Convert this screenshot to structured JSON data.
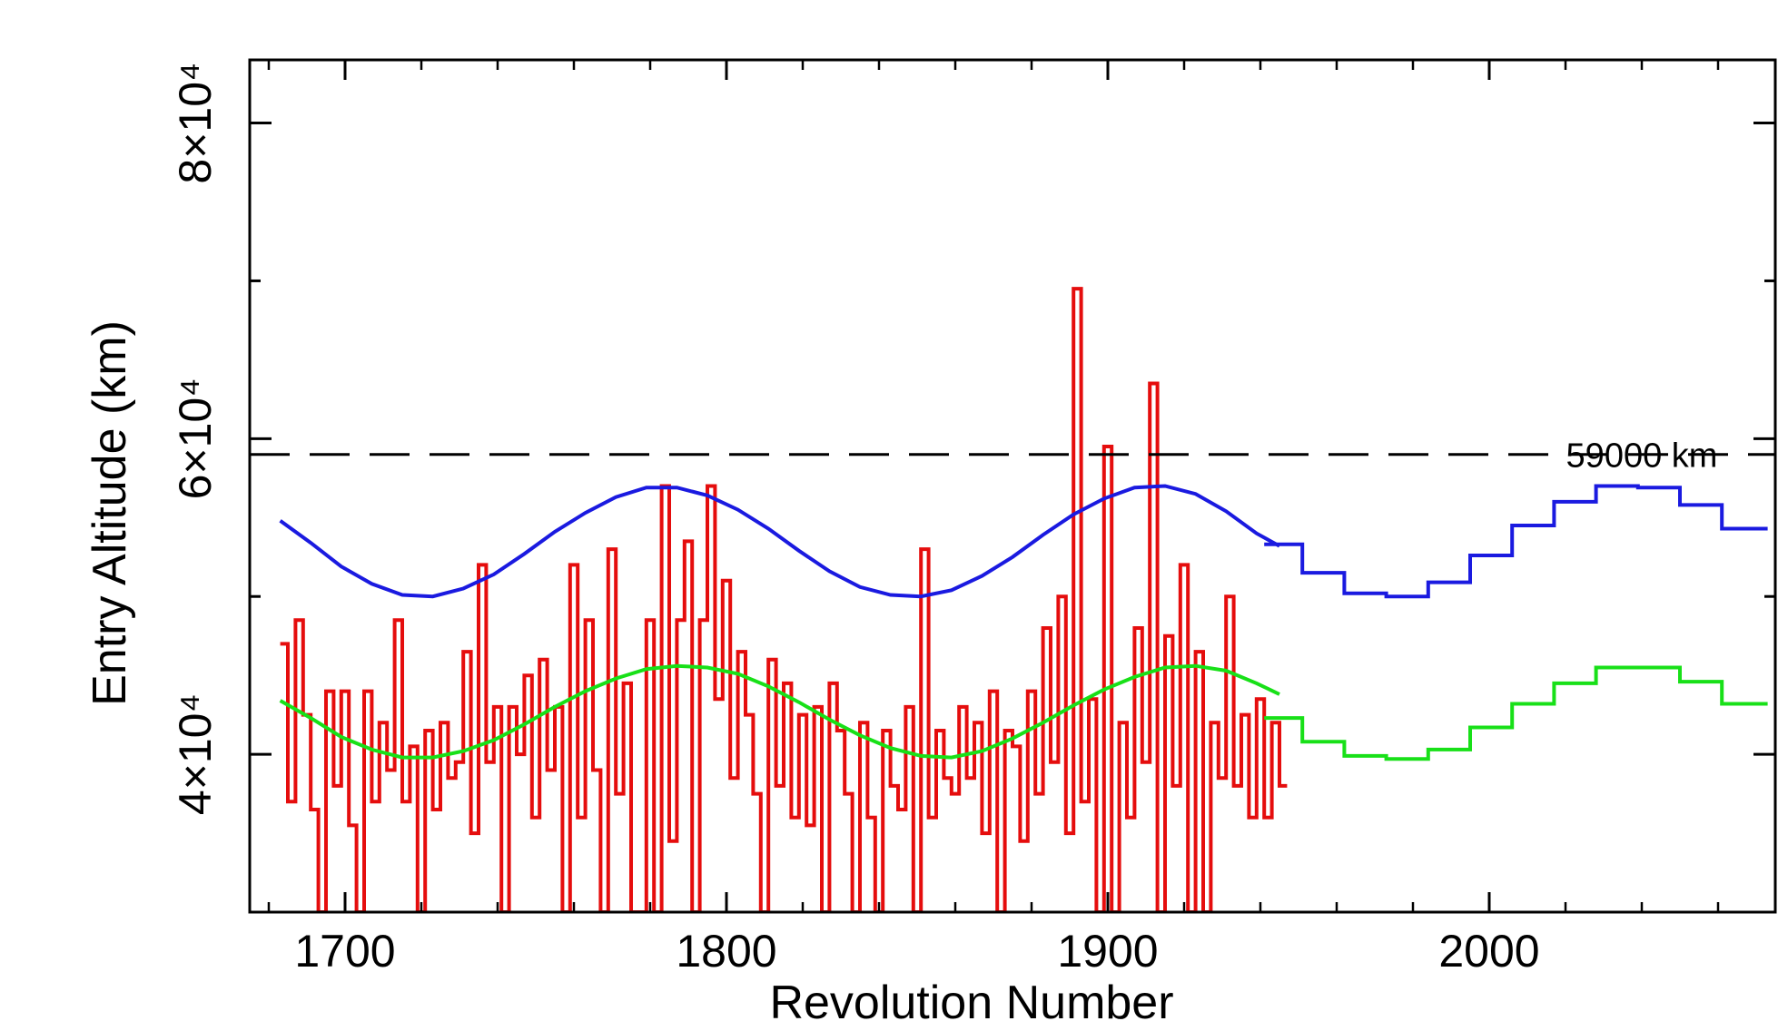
{
  "chart_data": {
    "type": "line",
    "xlabel": "Revolution Number",
    "ylabel": "Entry Altitude (km)",
    "xlim": [
      1675,
      2075
    ],
    "ylim": [
      30000,
      84000
    ],
    "grid": false,
    "x_ticks": [
      {
        "value": 1700,
        "label": "1700"
      },
      {
        "value": 1800,
        "label": "1800"
      },
      {
        "value": 1900,
        "label": "1900"
      },
      {
        "value": 2000,
        "label": "2000"
      }
    ],
    "y_ticks": [
      {
        "value": 40000,
        "label": "4×10⁴"
      },
      {
        "value": 60000,
        "label": "6×10⁴"
      },
      {
        "value": 80000,
        "label": "8×10⁴"
      }
    ],
    "annotations": [
      {
        "text": "59000 km",
        "x": 2040,
        "y": 59000
      }
    ],
    "reference_lines": [
      {
        "y": 59000,
        "style": "dashed",
        "color": "#000000",
        "x": [
          1675,
          2075
        ]
      }
    ],
    "series": [
      {
        "color": "#e50d0d",
        "style": "step",
        "x": [
          1683,
          1685,
          1687,
          1689,
          1691,
          1693,
          1695,
          1697,
          1699,
          1701,
          1703,
          1705,
          1707,
          1709,
          1711,
          1713,
          1715,
          1717,
          1719,
          1721,
          1723,
          1725,
          1727,
          1729,
          1731,
          1733,
          1735,
          1737,
          1739,
          1741,
          1743,
          1745,
          1747,
          1749,
          1751,
          1753,
          1755,
          1757,
          1759,
          1761,
          1763,
          1765,
          1767,
          1769,
          1771,
          1773,
          1775,
          1777,
          1779,
          1781,
          1783,
          1785,
          1787,
          1789,
          1791,
          1793,
          1795,
          1797,
          1799,
          1801,
          1803,
          1805,
          1807,
          1809,
          1811,
          1813,
          1815,
          1817,
          1819,
          1821,
          1823,
          1825,
          1827,
          1829,
          1831,
          1833,
          1835,
          1837,
          1839,
          1841,
          1843,
          1845,
          1847,
          1849,
          1851,
          1853,
          1855,
          1857,
          1859,
          1861,
          1863,
          1865,
          1867,
          1869,
          1871,
          1873,
          1875,
          1877,
          1879,
          1881,
          1883,
          1885,
          1887,
          1889,
          1891,
          1893,
          1895,
          1897,
          1899,
          1901,
          1903,
          1905,
          1907,
          1909,
          1911,
          1913,
          1915,
          1917,
          1919,
          1921,
          1923,
          1925,
          1927,
          1929,
          1931,
          1933,
          1935,
          1937,
          1939,
          1941,
          1943,
          1945
        ],
        "y": [
          47000,
          37000,
          48500,
          42500,
          36500,
          30000,
          44000,
          38000,
          44000,
          35500,
          30000,
          44000,
          37000,
          42000,
          39000,
          48500,
          37000,
          40500,
          30000,
          41500,
          36500,
          42000,
          38500,
          39500,
          46500,
          35000,
          52000,
          39500,
          43000,
          30000,
          43000,
          40000,
          45000,
          36000,
          46000,
          39000,
          43000,
          30000,
          52000,
          36000,
          48500,
          39000,
          30000,
          53000,
          37500,
          44500,
          30000,
          30000,
          48500,
          30000,
          57000,
          34500,
          48500,
          53500,
          30000,
          48500,
          57000,
          43500,
          51000,
          38500,
          46500,
          42500,
          37500,
          30000,
          46000,
          38000,
          44500,
          36000,
          42500,
          35500,
          43000,
          30000,
          44500,
          41500,
          37500,
          30000,
          42000,
          36000,
          30000,
          41500,
          38000,
          36500,
          43000,
          30000,
          53000,
          36000,
          41500,
          38500,
          37500,
          43000,
          38500,
          42000,
          35000,
          44000,
          30000,
          41500,
          40500,
          34500,
          44000,
          37500,
          48000,
          39500,
          50000,
          35000,
          69500,
          37000,
          43500,
          30000,
          59500,
          30000,
          42000,
          36000,
          48000,
          39500,
          63500,
          30000,
          47500,
          38000,
          52000,
          30000,
          46500,
          30000,
          42000,
          38500,
          50000,
          38000,
          42500,
          36000,
          43500,
          36000,
          42000,
          38000
        ],
        "end": 1947
      },
      {
        "color": "#1a1ae0",
        "style": "line",
        "x": [
          1683,
          1691,
          1699,
          1707,
          1715,
          1723,
          1731,
          1739,
          1747,
          1755,
          1763,
          1771,
          1779,
          1787,
          1795,
          1803,
          1811,
          1819,
          1827,
          1835,
          1843,
          1851,
          1859,
          1867,
          1875,
          1883,
          1891,
          1899,
          1907,
          1915,
          1923,
          1931,
          1939,
          1945
        ],
        "y": [
          54800,
          53400,
          51900,
          50800,
          50100,
          50000,
          50500,
          51400,
          52700,
          54100,
          55300,
          56300,
          56900,
          56900,
          56400,
          55500,
          54300,
          52900,
          51600,
          50600,
          50100,
          50000,
          50400,
          51300,
          52500,
          53900,
          55200,
          56200,
          56900,
          57000,
          56500,
          55400,
          54000,
          53200
        ]
      },
      {
        "color": "#1a1ae0",
        "style": "step",
        "x": [
          1941,
          1951,
          1962,
          1973,
          1984,
          1995,
          2006,
          2017,
          2028,
          2039,
          2050,
          2061
        ],
        "y": [
          53300,
          51500,
          50200,
          50000,
          50900,
          52600,
          54500,
          56000,
          57000,
          56900,
          55800,
          54300
        ],
        "end": 2073
      },
      {
        "color": "#18e018",
        "style": "line",
        "x": [
          1683,
          1691,
          1699,
          1707,
          1715,
          1723,
          1731,
          1739,
          1747,
          1755,
          1763,
          1771,
          1779,
          1787,
          1795,
          1803,
          1811,
          1819,
          1827,
          1835,
          1843,
          1851,
          1859,
          1867,
          1875,
          1883,
          1891,
          1899,
          1907,
          1915,
          1923,
          1931,
          1939,
          1945
        ],
        "y": [
          43400,
          42300,
          41100,
          40300,
          39800,
          39800,
          40200,
          40900,
          41900,
          43000,
          44000,
          44800,
          45400,
          45600,
          45500,
          45100,
          44300,
          43300,
          42200,
          41200,
          40400,
          39900,
          39800,
          40200,
          41000,
          42000,
          43100,
          44100,
          44900,
          45500,
          45600,
          45300,
          44500,
          43800
        ]
      },
      {
        "color": "#18e018",
        "style": "step",
        "x": [
          1941,
          1951,
          1962,
          1973,
          1984,
          1995,
          2006,
          2017,
          2028,
          2039,
          2050,
          2061
        ],
        "y": [
          42300,
          40800,
          39900,
          39700,
          40300,
          41700,
          43200,
          44500,
          45500,
          45500,
          44600,
          43200
        ],
        "end": 2073
      }
    ]
  }
}
